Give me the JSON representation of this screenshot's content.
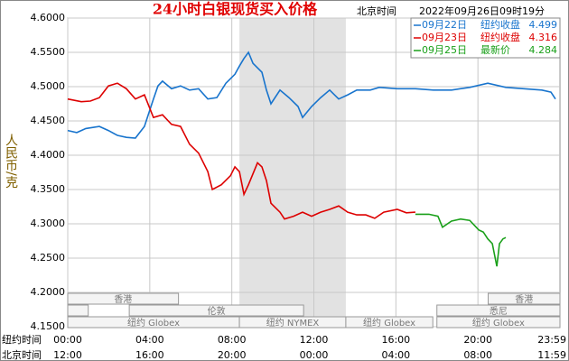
{
  "chart_data": {
    "type": "line",
    "title": "24小时白银现货买入价格",
    "subtitle_label": "北京时间",
    "subtitle": "2022年09月26日09时19分",
    "ylabel": "人民币/克",
    "x_axis_labels": [
      "纽约时间",
      "北京时间"
    ],
    "xlim": [
      0,
      24
    ],
    "xticks": [
      {
        "value": 0,
        "label": "00:00"
      },
      {
        "value": 4,
        "label": "04:00"
      },
      {
        "value": 8,
        "label": "08:00"
      },
      {
        "value": 12,
        "label": "12:00"
      },
      {
        "value": 16,
        "label": "16:00"
      },
      {
        "value": 20,
        "label": "20:00"
      },
      {
        "value": 23.98,
        "label": "23:59"
      }
    ],
    "xticks_beijing": [
      {
        "value": 0,
        "label": "12:00"
      },
      {
        "value": 4,
        "label": "16:00"
      },
      {
        "value": 8,
        "label": "20:00"
      },
      {
        "value": 12,
        "label": "00:00"
      },
      {
        "value": 16,
        "label": "04:00"
      },
      {
        "value": 20,
        "label": "08:00"
      },
      {
        "value": 23.98,
        "label": "11:59"
      }
    ],
    "ylim": [
      4.15,
      4.6
    ],
    "yticks": [
      {
        "value": 4.6,
        "label": "4.6000"
      },
      {
        "value": 4.55,
        "label": "4.5500"
      },
      {
        "value": 4.5,
        "label": "4.5000"
      },
      {
        "value": 4.45,
        "label": "4.4500"
      },
      {
        "value": 4.4,
        "label": "4.4000"
      },
      {
        "value": 4.35,
        "label": "4.3500"
      },
      {
        "value": 4.3,
        "label": "4.3000"
      },
      {
        "value": 4.25,
        "label": "4.2500"
      },
      {
        "value": 4.2,
        "label": "4.2000"
      },
      {
        "value": 4.15,
        "label": "4.1500"
      }
    ],
    "grid": true,
    "shade": [
      8.37,
      13.56
    ],
    "session_rows": [
      [
        {
          "name": "香港",
          "start": 0,
          "end": 5.4
        },
        {
          "name": "香港",
          "start": 20.5,
          "end": 24
        }
      ],
      [
        {
          "name": null,
          "start": 0,
          "end": 1
        },
        {
          "name": "伦敦",
          "start": 3,
          "end": 11.5
        },
        {
          "name": "悉尼",
          "start": 18,
          "end": 24
        }
      ],
      [
        {
          "name": "纽约 Globex",
          "start": 0,
          "end": 8.37
        },
        {
          "name": "纽约 NYMEX",
          "start": 8.37,
          "end": 13.56
        },
        {
          "name": "纽约 Globex",
          "start": 13.56,
          "end": 17.8
        },
        {
          "name": "纽约 Globex",
          "start": 18,
          "end": 24
        }
      ]
    ],
    "series": [
      {
        "name": "09月22日",
        "label": "纽约收盘",
        "last": 4.499,
        "color": "#1874cd",
        "x": [
          0,
          0.44,
          0.88,
          1.54,
          1.98,
          2.42,
          2.86,
          3.3,
          3.74,
          3.96,
          4.18,
          4.4,
          4.62,
          5.06,
          5.5,
          5.94,
          6.38,
          6.83,
          7.27,
          7.71,
          8.15,
          8.37,
          8.59,
          8.81,
          9.03,
          9.47,
          9.69,
          9.91,
          10.35,
          10.79,
          11.23,
          11.45,
          11.89,
          12.33,
          12.77,
          13.21,
          13.65,
          14.09,
          14.75,
          15.19,
          16.07,
          16.95,
          17.83,
          18.71,
          19.6,
          20.48,
          21.36,
          22.24,
          23.12,
          23.56,
          23.78
        ],
        "values": [
          4.436,
          4.433,
          4.439,
          4.442,
          4.436,
          4.429,
          4.426,
          4.425,
          4.442,
          4.462,
          4.482,
          4.501,
          4.508,
          4.497,
          4.501,
          4.495,
          4.497,
          4.482,
          4.484,
          4.505,
          4.518,
          4.53,
          4.541,
          4.55,
          4.534,
          4.521,
          4.495,
          4.475,
          4.495,
          4.484,
          4.471,
          4.455,
          4.471,
          4.484,
          4.495,
          4.482,
          4.488,
          4.495,
          4.495,
          4.499,
          4.497,
          4.497,
          4.495,
          4.495,
          4.499,
          4.505,
          4.499,
          4.497,
          4.495,
          4.492,
          4.482
        ]
      },
      {
        "name": "09月23日",
        "label": "纽约收盘",
        "last": 4.316,
        "color": "#dd0000",
        "x": [
          0,
          0.66,
          1.1,
          1.54,
          1.98,
          2.42,
          2.86,
          3.3,
          3.74,
          4.18,
          4.62,
          5.06,
          5.5,
          5.94,
          6.38,
          6.83,
          7.05,
          7.49,
          7.93,
          8.15,
          8.37,
          8.59,
          8.81,
          9.25,
          9.47,
          9.69,
          9.91,
          10.35,
          10.57,
          11.01,
          11.45,
          11.89,
          12.33,
          12.77,
          13.21,
          13.65,
          14.09,
          14.53,
          14.97,
          15.41,
          16.07,
          16.51,
          16.95
        ],
        "values": [
          4.482,
          4.478,
          4.479,
          4.484,
          4.501,
          4.505,
          4.497,
          4.482,
          4.488,
          4.455,
          4.459,
          4.445,
          4.442,
          4.416,
          4.403,
          4.376,
          4.35,
          4.357,
          4.37,
          4.383,
          4.376,
          4.343,
          4.357,
          4.389,
          4.383,
          4.363,
          4.33,
          4.317,
          4.307,
          4.311,
          4.317,
          4.311,
          4.317,
          4.321,
          4.326,
          4.317,
          4.313,
          4.313,
          4.308,
          4.317,
          4.321,
          4.316,
          4.317
        ]
      },
      {
        "name": "09月25日",
        "label": "最新价",
        "last": 4.284,
        "color": "#1aa01a",
        "x": [
          16.95,
          17.61,
          18.05,
          18.27,
          18.71,
          19.15,
          19.6,
          20.04,
          20.26,
          20.48,
          20.7,
          20.92,
          21.05,
          21.22,
          21.36
        ],
        "values": [
          4.314,
          4.314,
          4.311,
          4.295,
          4.304,
          4.307,
          4.305,
          4.291,
          4.288,
          4.278,
          4.271,
          4.238,
          4.271,
          4.278,
          4.28
        ]
      }
    ]
  }
}
